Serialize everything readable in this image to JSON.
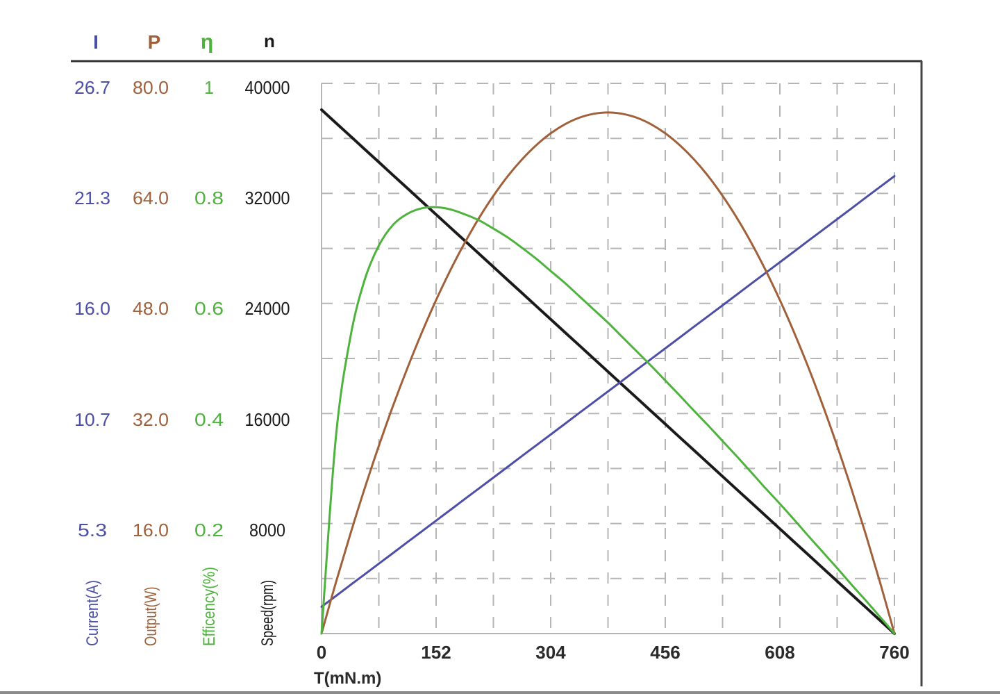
{
  "chart_data": {
    "type": "line",
    "title": "",
    "xlabel": "T(mN.m)",
    "xlim": [
      0,
      760
    ],
    "xticks": [
      0,
      152,
      304,
      456,
      608,
      760
    ],
    "grid": true,
    "grid_style": "dashed",
    "grid_divisions": {
      "x": 10,
      "y": 10
    },
    "legend": "axis headers above left-side scales",
    "axes": [
      {
        "key": "I",
        "symbol": "I",
        "label": "Current(A)",
        "color": "#4b4fa6",
        "ylim": [
          0,
          26.7
        ],
        "ticks": [
          "5.3",
          "10.7",
          "16.0",
          "21.3",
          "26.7"
        ]
      },
      {
        "key": "P",
        "symbol": "P",
        "label": "Output(W)",
        "color": "#a0603a",
        "ylim": [
          0,
          80.0
        ],
        "ticks": [
          "16.0",
          "32.0",
          "48.0",
          "64.0",
          "80.0"
        ]
      },
      {
        "key": "eta",
        "symbol": "η",
        "label": "Efficency(%)",
        "color": "#4db33d",
        "ylim": [
          0,
          1
        ],
        "ticks": [
          "0.2",
          "0.4",
          "0.6",
          "0.8",
          "1"
        ]
      },
      {
        "key": "n",
        "symbol": "n",
        "label": "Speed(rpm)",
        "color": "#1a1a1a",
        "ylim": [
          0,
          40000
        ],
        "ticks": [
          "8000",
          "16000",
          "24000",
          "32000",
          "40000"
        ]
      }
    ],
    "x": [
      0,
      19,
      38,
      57,
      76,
      95,
      114,
      133,
      152,
      171,
      190,
      209,
      228,
      247,
      266,
      285,
      304,
      323,
      342,
      361,
      380,
      399,
      418,
      437,
      456,
      475,
      494,
      513,
      532,
      551,
      570,
      589,
      608,
      627,
      646,
      665,
      684,
      703,
      722,
      741,
      760
    ],
    "series": [
      {
        "name": "Speed n (rpm)",
        "axis": "n",
        "color": "#1a1a1a",
        "values": [
          38080,
          37128,
          36176,
          35224,
          34272,
          33320,
          32368,
          31416,
          30464,
          29512,
          28560,
          27608,
          26656,
          25704,
          24752,
          23800,
          22848,
          21896,
          20944,
          19992,
          19040,
          18088,
          17136,
          16184,
          15232,
          14280,
          13328,
          12376,
          11424,
          10472,
          9520,
          8568,
          7616,
          6664,
          5712,
          4760,
          3808,
          2856,
          1904,
          952,
          0
        ]
      },
      {
        "name": "Current I (A)",
        "axis": "I",
        "color": "#4b4fa6",
        "values": [
          1.3,
          1.82,
          2.35,
          2.87,
          3.39,
          3.91,
          4.44,
          4.96,
          5.48,
          6.0,
          6.53,
          7.05,
          7.57,
          8.09,
          8.62,
          9.14,
          9.66,
          10.18,
          10.71,
          11.23,
          11.75,
          12.27,
          12.8,
          13.32,
          13.84,
          14.36,
          14.89,
          15.41,
          15.93,
          16.45,
          16.98,
          17.5,
          18.02,
          18.54,
          19.07,
          19.59,
          20.11,
          20.63,
          21.16,
          21.68,
          22.2
        ]
      },
      {
        "name": "Output P (W)",
        "axis": "P",
        "color": "#a0603a",
        "values": [
          0,
          7.39,
          14.4,
          21.03,
          27.28,
          33.15,
          38.64,
          43.76,
          48.49,
          52.85,
          56.83,
          60.43,
          63.65,
          66.49,
          68.95,
          71.03,
          72.74,
          74.06,
          75.01,
          75.58,
          75.77,
          75.58,
          75.01,
          74.06,
          72.74,
          71.03,
          68.95,
          66.49,
          63.65,
          60.43,
          56.83,
          52.85,
          48.49,
          43.76,
          38.64,
          33.15,
          27.28,
          21.03,
          14.4,
          7.39,
          0
        ]
      },
      {
        "name": "Efficiency η",
        "axis": "eta",
        "color": "#4db33d",
        "values": [
          0,
          0.356,
          0.537,
          0.642,
          0.705,
          0.743,
          0.763,
          0.773,
          0.775,
          0.771,
          0.762,
          0.751,
          0.736,
          0.72,
          0.701,
          0.681,
          0.659,
          0.637,
          0.613,
          0.589,
          0.565,
          0.539,
          0.513,
          0.487,
          0.46,
          0.433,
          0.405,
          0.378,
          0.35,
          0.322,
          0.293,
          0.264,
          0.236,
          0.207,
          0.177,
          0.148,
          0.119,
          0.089,
          0.06,
          0.03,
          0
        ]
      }
    ]
  },
  "header": {
    "symbols": [
      "I",
      "P",
      "η",
      "n"
    ]
  }
}
